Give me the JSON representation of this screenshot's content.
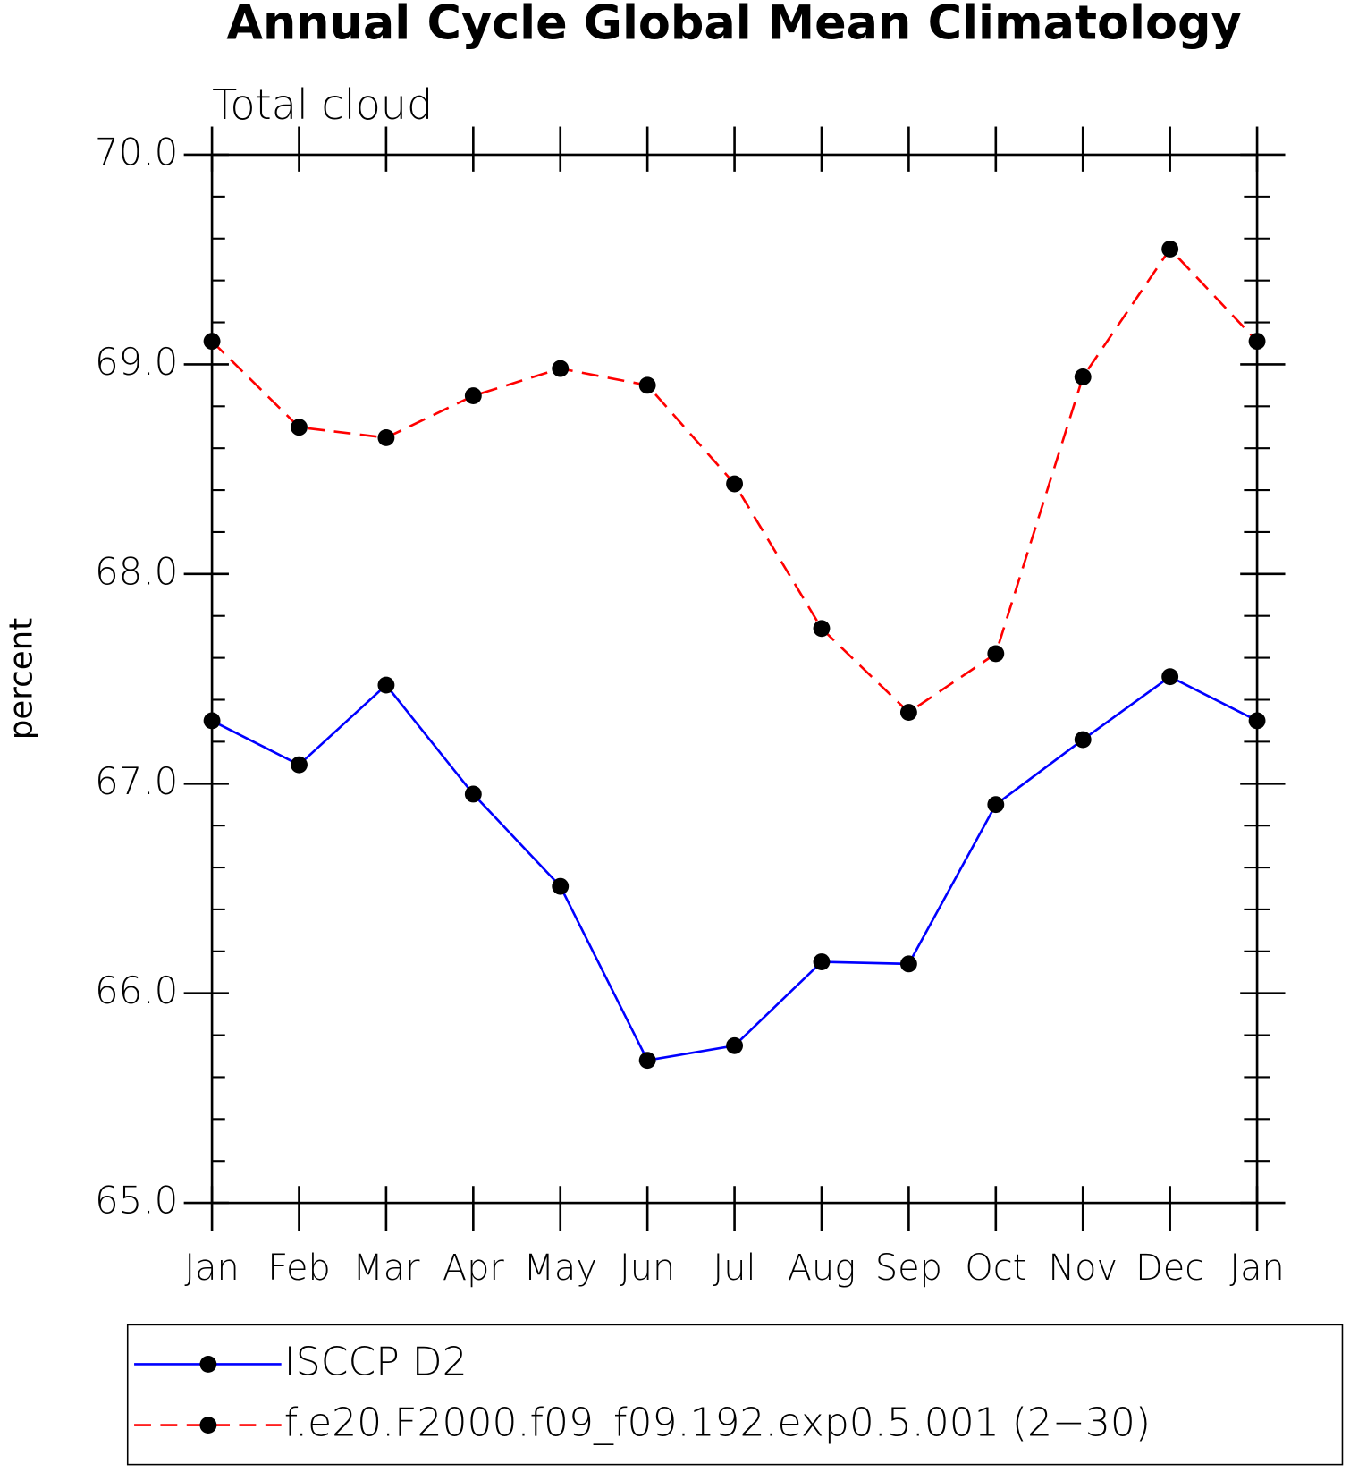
{
  "chart_data": {
    "type": "line",
    "title": "Annual Cycle Global Mean Climatology",
    "subtitle": "Total cloud",
    "y_label": "percent",
    "categories": [
      "Jan",
      "Feb",
      "Mar",
      "Apr",
      "May",
      "Jun",
      "Jul",
      "Aug",
      "Sep",
      "Oct",
      "Nov",
      "Dec",
      "Jan"
    ],
    "series": [
      {
        "name": "ISCCP D2",
        "color": "#0000ff",
        "dashed": false,
        "values": [
          67.3,
          67.09,
          67.47,
          66.95,
          66.51,
          65.68,
          65.75,
          66.15,
          66.14,
          66.9,
          67.21,
          67.51,
          67.3
        ]
      },
      {
        "name": "f.e20.F2000.f09_f09.192.exp0.5.001 (2−30)",
        "color": "#ff0000",
        "dashed": true,
        "values": [
          69.11,
          68.7,
          68.65,
          68.85,
          68.98,
          68.9,
          68.43,
          67.74,
          67.34,
          67.62,
          68.94,
          69.55,
          69.11
        ]
      }
    ],
    "ylim": [
      65,
      70
    ],
    "yticks": [
      {
        "value": 65,
        "label": "65.0"
      },
      {
        "value": 66,
        "label": "66.0"
      },
      {
        "value": 67,
        "label": "67.0"
      },
      {
        "value": 68,
        "label": "68.0"
      },
      {
        "value": 69,
        "label": "69.0"
      },
      {
        "value": 70,
        "label": "70.0"
      }
    ],
    "yminorticks": [
      65.2,
      65.4,
      65.6,
      65.8,
      66.2,
      66.4,
      66.6,
      66.8,
      67.2,
      67.4,
      67.6,
      67.8,
      68.2,
      68.4,
      68.6,
      68.8,
      69.2,
      69.4,
      69.6,
      69.8
    ],
    "markers": true
  }
}
